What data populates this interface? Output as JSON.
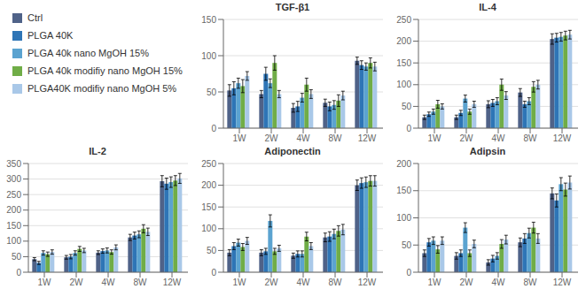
{
  "chart_data": [
    {
      "type": "bar",
      "title": "TGF-β1",
      "categories": [
        "1W",
        "2W",
        "4W",
        "8W",
        "12W"
      ],
      "ylim": [
        0,
        150
      ],
      "yticks": [
        0,
        50,
        100,
        150
      ],
      "grid": true,
      "series": [
        {
          "name": "Ctrl",
          "color": "#4f6288",
          "values": [
            52,
            47,
            28,
            35,
            93
          ],
          "errors": [
            8,
            5,
            6,
            5,
            5
          ]
        },
        {
          "name": "PLGA 40K",
          "color": "#2e75b6",
          "values": [
            55,
            75,
            30,
            30,
            87
          ],
          "errors": [
            9,
            9,
            7,
            6,
            6
          ]
        },
        {
          "name": "PLGA 40k nano MgOH 15%",
          "color": "#5ba3d0",
          "values": [
            62,
            62,
            42,
            32,
            85
          ],
          "errors": [
            7,
            6,
            6,
            6,
            5
          ]
        },
        {
          "name": "PLGA 40k modifiy nano MgOH 15%",
          "color": "#70ad47",
          "values": [
            58,
            90,
            60,
            38,
            90
          ],
          "errors": [
            9,
            10,
            9,
            8,
            7
          ]
        },
        {
          "name": "PLGA40K modifiy nano MgOH 5%",
          "color": "#a9c8e8",
          "values": [
            72,
            47,
            47,
            45,
            85
          ],
          "errors": [
            6,
            5,
            6,
            6,
            6
          ]
        }
      ]
    },
    {
      "type": "bar",
      "title": "IL-4",
      "categories": [
        "1W",
        "2W",
        "4W",
        "8W",
        "12W"
      ],
      "ylim": [
        0,
        250
      ],
      "yticks": [
        0,
        50,
        100,
        150,
        200,
        250
      ],
      "grid": true,
      "series": [
        {
          "name": "Ctrl",
          "color": "#4f6288",
          "values": [
            25,
            25,
            55,
            82,
            205
          ],
          "errors": [
            5,
            5,
            8,
            9,
            12
          ]
        },
        {
          "name": "PLGA 40K",
          "color": "#2e75b6",
          "values": [
            32,
            35,
            58,
            55,
            208
          ],
          "errors": [
            5,
            6,
            8,
            7,
            10
          ]
        },
        {
          "name": "PLGA 40k nano MgOH 15%",
          "color": "#5ba3d0",
          "values": [
            38,
            68,
            62,
            62,
            210
          ],
          "errors": [
            6,
            8,
            8,
            8,
            10
          ]
        },
        {
          "name": "PLGA 40k modifiy nano MgOH 15%",
          "color": "#70ad47",
          "values": [
            55,
            38,
            100,
            95,
            213
          ],
          "errors": [
            9,
            6,
            13,
            12,
            10
          ]
        },
        {
          "name": "PLGA40K modifiy nano MgOH 5%",
          "color": "#a9c8e8",
          "values": [
            50,
            55,
            75,
            100,
            215
          ],
          "errors": [
            6,
            7,
            9,
            10,
            10
          ]
        }
      ]
    },
    {
      "type": "bar",
      "title": "IL-2",
      "categories": [
        "1W",
        "2W",
        "4W",
        "8W",
        "12W"
      ],
      "ylim": [
        0,
        350
      ],
      "yticks": [
        0,
        50,
        100,
        150,
        200,
        250,
        300,
        350
      ],
      "grid": true,
      "series": [
        {
          "name": "Ctrl",
          "color": "#4f6288",
          "values": [
            42,
            48,
            63,
            112,
            293
          ],
          "errors": [
            5,
            6,
            6,
            10,
            18
          ]
        },
        {
          "name": "PLGA 40K",
          "color": "#2e75b6",
          "values": [
            30,
            50,
            68,
            118,
            285
          ],
          "errors": [
            5,
            7,
            7,
            11,
            18
          ]
        },
        {
          "name": "PLGA 40k nano MgOH 15%",
          "color": "#5ba3d0",
          "values": [
            62,
            62,
            70,
            122,
            290
          ],
          "errors": [
            7,
            7,
            8,
            11,
            17
          ]
        },
        {
          "name": "PLGA 40k modifiy nano MgOH 15%",
          "color": "#70ad47",
          "values": [
            58,
            75,
            65,
            140,
            295
          ],
          "errors": [
            7,
            8,
            7,
            13,
            16
          ]
        },
        {
          "name": "PLGA40K modifiy nano MgOH 5%",
          "color": "#a9c8e8",
          "values": [
            65,
            70,
            80,
            130,
            302
          ],
          "errors": [
            7,
            7,
            8,
            12,
            16
          ]
        }
      ]
    },
    {
      "type": "bar",
      "title": "Adiponectin",
      "categories": [
        "1W",
        "2W",
        "4W",
        "8W",
        "12W"
      ],
      "ylim": [
        0,
        250
      ],
      "yticks": [
        0,
        50,
        100,
        150,
        200,
        250
      ],
      "grid": true,
      "series": [
        {
          "name": "Ctrl",
          "color": "#4f6288",
          "values": [
            45,
            45,
            38,
            80,
            200
          ],
          "errors": [
            7,
            7,
            6,
            10,
            12
          ]
        },
        {
          "name": "PLGA 40K",
          "color": "#2e75b6",
          "values": [
            60,
            48,
            42,
            82,
            205
          ],
          "errors": [
            8,
            7,
            7,
            11,
            12
          ]
        },
        {
          "name": "PLGA 40k nano MgOH 15%",
          "color": "#5ba3d0",
          "values": [
            68,
            118,
            42,
            88,
            207
          ],
          "errors": [
            8,
            14,
            7,
            11,
            12
          ]
        },
        {
          "name": "PLGA 40k modifiy nano MgOH 15%",
          "color": "#70ad47",
          "values": [
            58,
            48,
            82,
            95,
            210
          ],
          "errors": [
            8,
            7,
            10,
            12,
            12
          ]
        },
        {
          "name": "PLGA40K modifiy nano MgOH 5%",
          "color": "#a9c8e8",
          "values": [
            72,
            55,
            60,
            98,
            210
          ],
          "errors": [
            8,
            7,
            8,
            12,
            12
          ]
        }
      ]
    },
    {
      "type": "bar",
      "title": "Adipsin",
      "categories": [
        "1W",
        "2W",
        "4W",
        "8W",
        "12W"
      ],
      "ylim": [
        0,
        200
      ],
      "yticks": [
        0,
        50,
        100,
        150,
        200
      ],
      "grid": true,
      "series": [
        {
          "name": "Ctrl",
          "color": "#4f6288",
          "values": [
            35,
            30,
            18,
            55,
            145
          ],
          "errors": [
            6,
            6,
            5,
            8,
            10
          ]
        },
        {
          "name": "PLGA 40K",
          "color": "#2e75b6",
          "values": [
            55,
            35,
            25,
            62,
            132
          ],
          "errors": [
            7,
            6,
            6,
            9,
            12
          ]
        },
        {
          "name": "PLGA 40k nano MgOH 15%",
          "color": "#5ba3d0",
          "values": [
            58,
            82,
            30,
            72,
            162
          ],
          "errors": [
            7,
            9,
            6,
            9,
            12
          ]
        },
        {
          "name": "PLGA 40k modifiy nano MgOH 15%",
          "color": "#70ad47",
          "values": [
            42,
            35,
            52,
            82,
            152
          ],
          "errors": [
            7,
            6,
            8,
            10,
            12
          ]
        },
        {
          "name": "PLGA40K modifiy nano MgOH 5%",
          "color": "#a9c8e8",
          "values": [
            58,
            52,
            60,
            62,
            165
          ],
          "errors": [
            7,
            7,
            8,
            9,
            12
          ]
        }
      ]
    }
  ]
}
